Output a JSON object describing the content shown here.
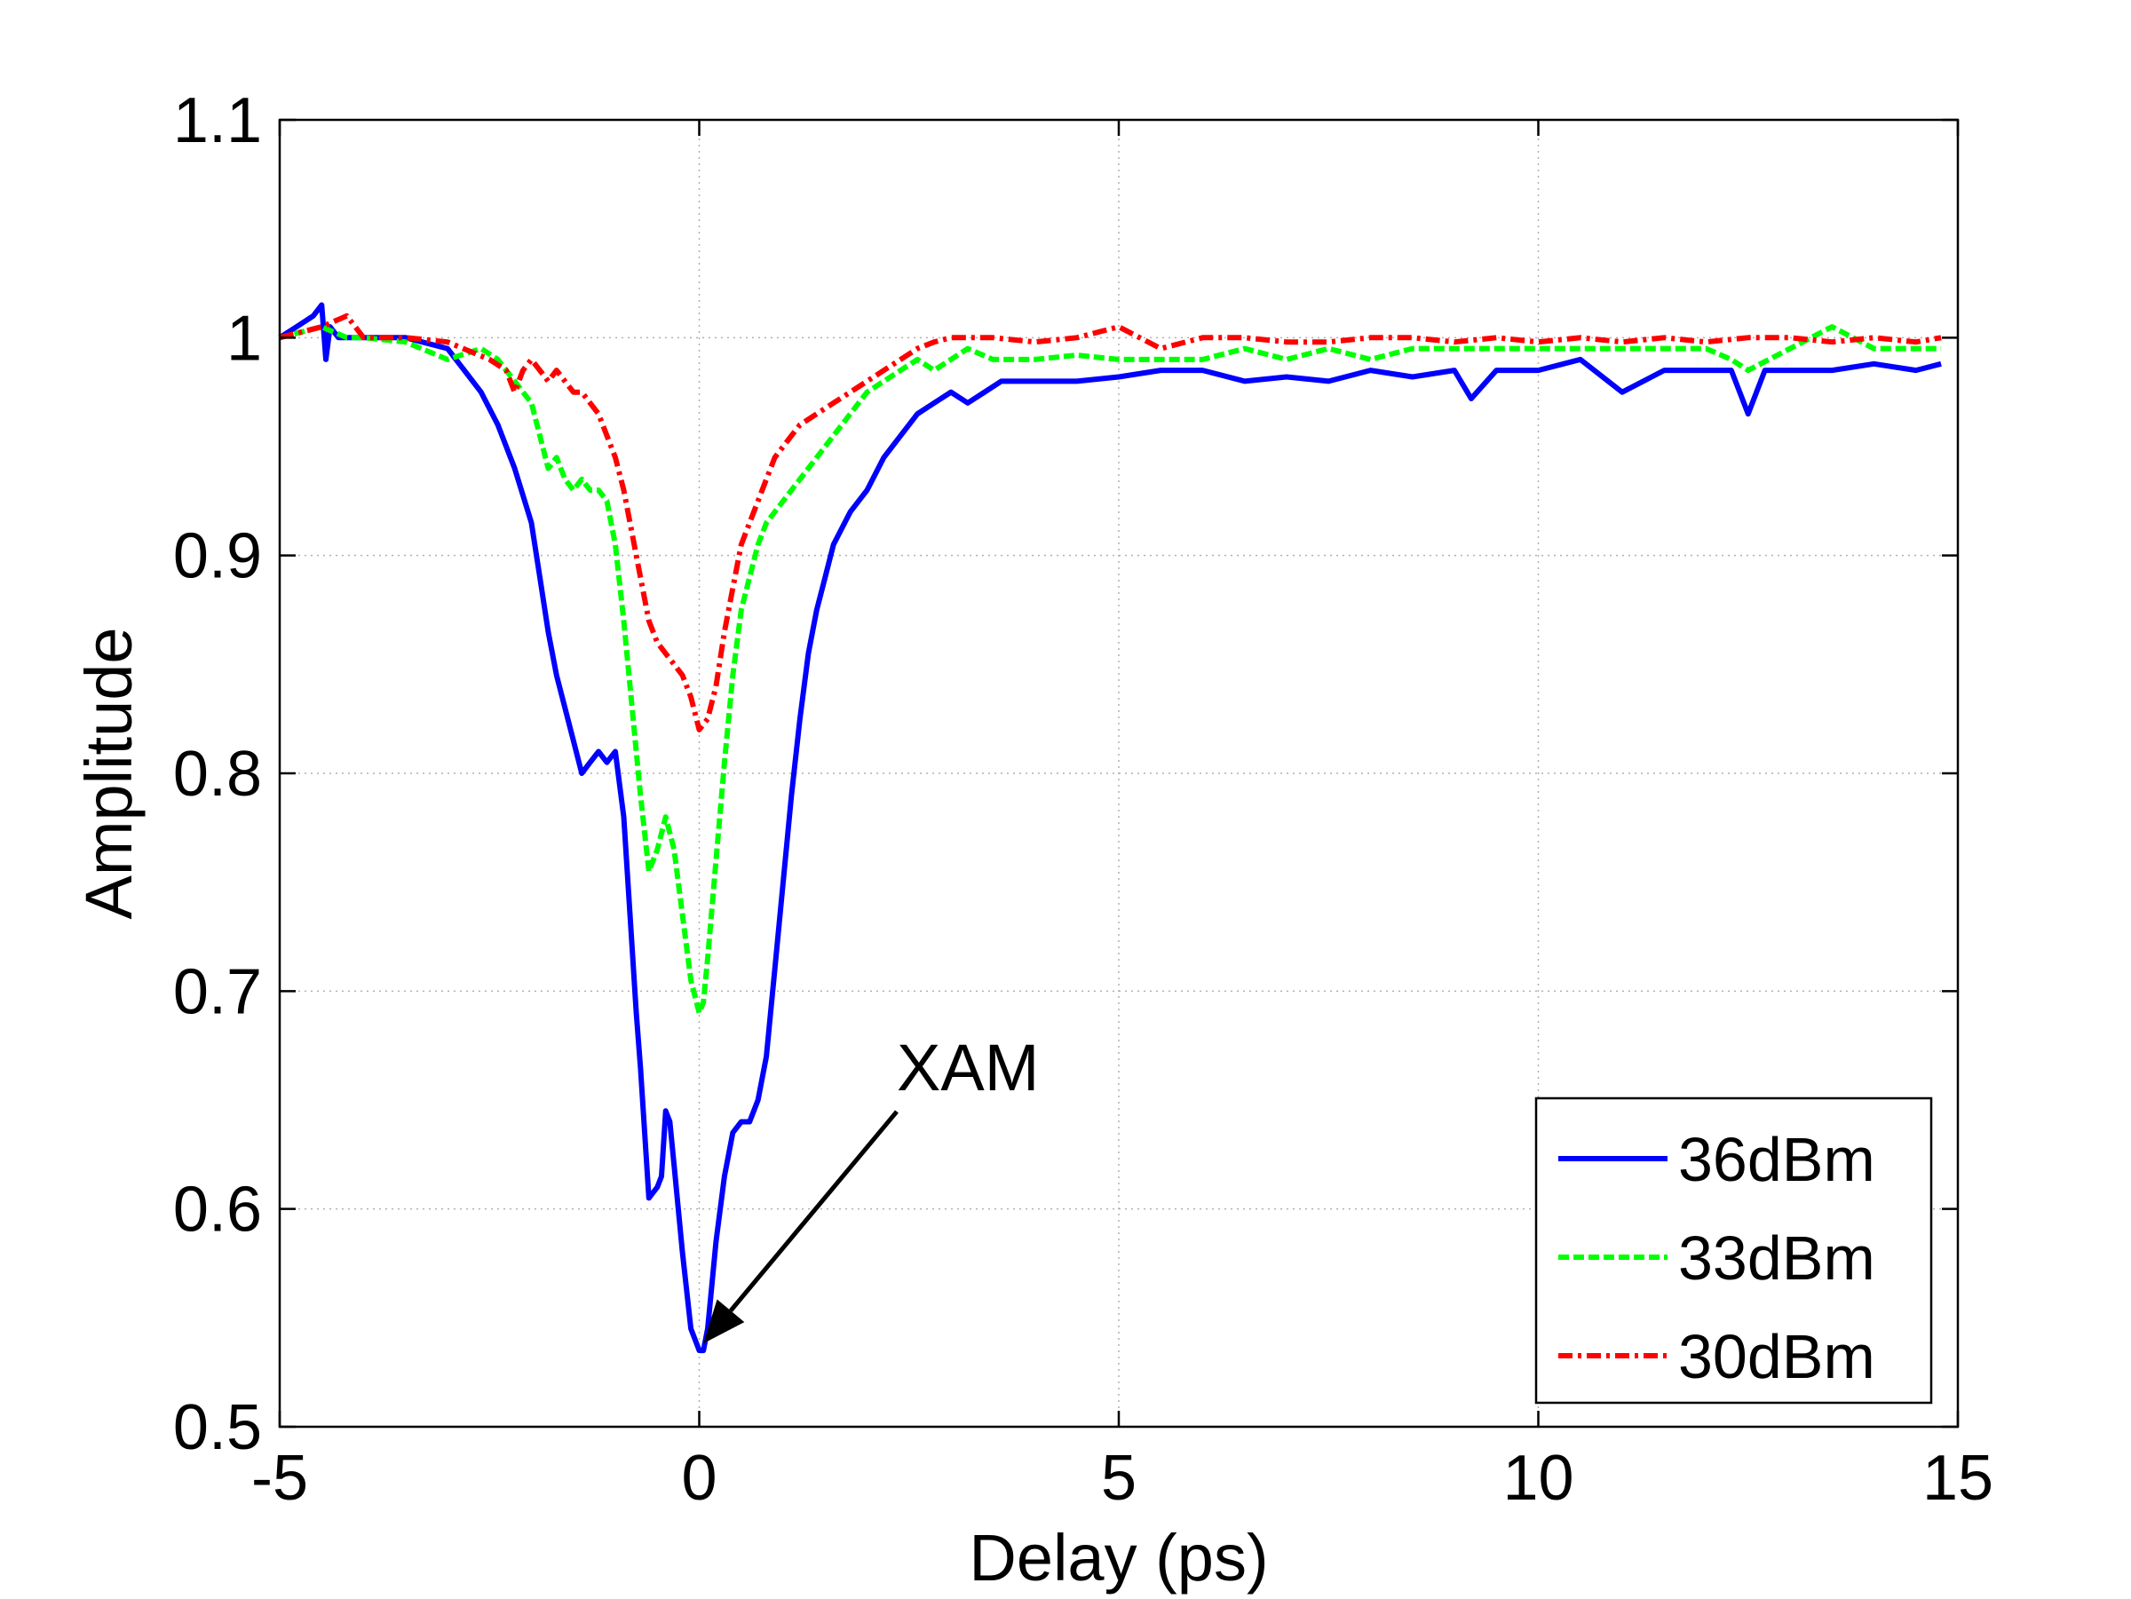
{
  "chart_data": {
    "type": "line",
    "xlabel": "Delay (ps)",
    "ylabel": "Amplitude",
    "xlim": [
      -5,
      15
    ],
    "ylim": [
      0.5,
      1.1
    ],
    "xticks": [
      -5,
      0,
      5,
      10,
      15
    ],
    "xtick_labels": [
      "-5",
      "0",
      "5",
      "10",
      "15"
    ],
    "yticks": [
      0.5,
      0.6,
      0.7,
      0.8,
      0.9,
      1.0,
      1.1
    ],
    "ytick_labels": [
      "0.5",
      "0.6",
      "0.7",
      "0.8",
      "0.9",
      "1",
      "1.1"
    ],
    "grid": true,
    "legend_position": "bottom-right",
    "annotation": {
      "text": "XAM",
      "x": 0.05,
      "y": 0.535
    },
    "series": [
      {
        "name": "36dBm",
        "color": "#0000ff",
        "style": "solid",
        "x": [
          -5,
          -4.8,
          -4.6,
          -4.5,
          -4.45,
          -4.4,
          -4.3,
          -4.2,
          -4.0,
          -3.5,
          -3.0,
          -2.8,
          -2.6,
          -2.4,
          -2.2,
          -2.0,
          -1.9,
          -1.8,
          -1.7,
          -1.6,
          -1.5,
          -1.4,
          -1.3,
          -1.2,
          -1.1,
          -1.0,
          -0.9,
          -0.8,
          -0.75,
          -0.7,
          -0.6,
          -0.5,
          -0.45,
          -0.4,
          -0.35,
          -0.3,
          -0.2,
          -0.1,
          0.0,
          0.05,
          0.1,
          0.2,
          0.3,
          0.4,
          0.5,
          0.6,
          0.7,
          0.8,
          0.9,
          1.0,
          1.1,
          1.2,
          1.3,
          1.4,
          1.5,
          1.6,
          1.8,
          2.0,
          2.2,
          2.4,
          2.6,
          2.8,
          3.0,
          3.2,
          3.4,
          3.6,
          3.8,
          4.0,
          4.5,
          5.0,
          5.5,
          6.0,
          6.5,
          7.0,
          7.5,
          8.0,
          8.5,
          9.0,
          9.2,
          9.5,
          10.0,
          10.5,
          11.0,
          11.5,
          12.0,
          12.3,
          12.5,
          12.7,
          13.0,
          13.5,
          14.0,
          14.5,
          14.8
        ],
        "y": [
          1.0,
          1.005,
          1.01,
          1.015,
          0.99,
          1.005,
          1.0,
          1.0,
          1.0,
          1.0,
          0.995,
          0.985,
          0.975,
          0.96,
          0.94,
          0.915,
          0.89,
          0.865,
          0.845,
          0.83,
          0.815,
          0.8,
          0.805,
          0.81,
          0.805,
          0.81,
          0.78,
          0.72,
          0.69,
          0.665,
          0.605,
          0.61,
          0.615,
          0.645,
          0.64,
          0.62,
          0.58,
          0.545,
          0.535,
          0.535,
          0.545,
          0.585,
          0.615,
          0.635,
          0.64,
          0.64,
          0.65,
          0.67,
          0.71,
          0.75,
          0.79,
          0.825,
          0.855,
          0.875,
          0.89,
          0.905,
          0.92,
          0.93,
          0.945,
          0.955,
          0.965,
          0.97,
          0.975,
          0.97,
          0.975,
          0.98,
          0.98,
          0.98,
          0.98,
          0.982,
          0.985,
          0.985,
          0.98,
          0.982,
          0.98,
          0.985,
          0.982,
          0.985,
          0.972,
          0.985,
          0.985,
          0.99,
          0.975,
          0.985,
          0.985,
          0.985,
          0.965,
          0.985,
          0.985,
          0.985,
          0.988,
          0.985,
          0.988
        ]
      },
      {
        "name": "33dBm",
        "color": "#00ff00",
        "style": "dashed",
        "x": [
          -5,
          -4.5,
          -4.2,
          -4.0,
          -3.5,
          -3.0,
          -2.6,
          -2.4,
          -2.2,
          -2.0,
          -1.9,
          -1.8,
          -1.7,
          -1.6,
          -1.5,
          -1.4,
          -1.3,
          -1.2,
          -1.1,
          -1.0,
          -0.9,
          -0.8,
          -0.7,
          -0.6,
          -0.5,
          -0.4,
          -0.3,
          -0.2,
          -0.1,
          0.0,
          0.05,
          0.1,
          0.2,
          0.3,
          0.4,
          0.5,
          0.6,
          0.7,
          0.8,
          0.9,
          1.0,
          1.1,
          1.2,
          1.3,
          1.4,
          1.5,
          1.6,
          1.8,
          2.0,
          2.2,
          2.4,
          2.6,
          2.8,
          3.0,
          3.2,
          3.5,
          4.0,
          4.5,
          5.0,
          5.5,
          6.0,
          6.5,
          7.0,
          7.5,
          8.0,
          8.5,
          9.0,
          9.5,
          10.0,
          10.5,
          11.0,
          11.5,
          12.0,
          12.3,
          12.5,
          13.0,
          13.5,
          14.0,
          14.5,
          14.8
        ],
        "y": [
          1.0,
          1.005,
          1.0,
          1.0,
          0.998,
          0.99,
          0.995,
          0.99,
          0.98,
          0.97,
          0.955,
          0.94,
          0.945,
          0.935,
          0.93,
          0.935,
          0.93,
          0.93,
          0.925,
          0.905,
          0.87,
          0.83,
          0.79,
          0.755,
          0.765,
          0.78,
          0.765,
          0.735,
          0.705,
          0.69,
          0.695,
          0.715,
          0.76,
          0.805,
          0.845,
          0.875,
          0.89,
          0.905,
          0.915,
          0.92,
          0.925,
          0.93,
          0.935,
          0.94,
          0.945,
          0.95,
          0.955,
          0.965,
          0.975,
          0.98,
          0.985,
          0.99,
          0.985,
          0.99,
          0.995,
          0.99,
          0.99,
          0.992,
          0.99,
          0.99,
          0.99,
          0.995,
          0.99,
          0.995,
          0.99,
          0.995,
          0.995,
          0.995,
          0.995,
          0.995,
          0.995,
          0.995,
          0.995,
          0.99,
          0.985,
          0.995,
          1.005,
          0.995,
          0.995,
          0.995
        ]
      },
      {
        "name": "30dBm",
        "color": "#ff0000",
        "style": "dash-dot",
        "x": [
          -5,
          -4.5,
          -4.2,
          -4.0,
          -3.5,
          -3.0,
          -2.5,
          -2.3,
          -2.2,
          -2.1,
          -2.0,
          -1.9,
          -1.8,
          -1.7,
          -1.6,
          -1.5,
          -1.4,
          -1.3,
          -1.2,
          -1.1,
          -1.0,
          -0.9,
          -0.8,
          -0.7,
          -0.6,
          -0.5,
          -0.4,
          -0.3,
          -0.2,
          -0.1,
          0.0,
          0.1,
          0.2,
          0.3,
          0.4,
          0.5,
          0.6,
          0.7,
          0.8,
          0.9,
          1.0,
          1.1,
          1.2,
          1.4,
          1.6,
          1.8,
          2.0,
          2.2,
          2.4,
          2.6,
          2.8,
          3.0,
          3.5,
          4.0,
          4.5,
          5.0,
          5.5,
          6.0,
          6.5,
          7.0,
          7.5,
          8.0,
          8.5,
          9.0,
          9.5,
          10.0,
          10.5,
          11.0,
          11.5,
          12.0,
          12.5,
          13.0,
          13.5,
          14.0,
          14.5,
          14.8
        ],
        "y": [
          1.0,
          1.005,
          1.01,
          1.0,
          1.0,
          0.998,
          0.99,
          0.985,
          0.975,
          0.985,
          0.99,
          0.985,
          0.98,
          0.985,
          0.98,
          0.975,
          0.975,
          0.97,
          0.965,
          0.955,
          0.945,
          0.93,
          0.91,
          0.89,
          0.87,
          0.86,
          0.855,
          0.85,
          0.845,
          0.835,
          0.82,
          0.825,
          0.84,
          0.865,
          0.885,
          0.905,
          0.915,
          0.925,
          0.935,
          0.945,
          0.95,
          0.955,
          0.96,
          0.965,
          0.97,
          0.975,
          0.98,
          0.985,
          0.99,
          0.995,
          0.998,
          1.0,
          1.0,
          0.998,
          1.0,
          1.005,
          0.995,
          1.0,
          1.0,
          0.998,
          0.998,
          1.0,
          1.0,
          0.998,
          1.0,
          0.998,
          1.0,
          0.998,
          1.0,
          0.998,
          1.0,
          1.0,
          0.998,
          1.0,
          0.998,
          1.0
        ]
      }
    ]
  }
}
